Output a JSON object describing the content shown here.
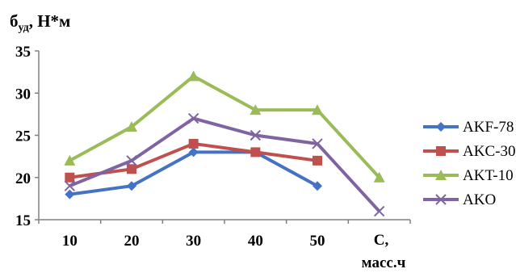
{
  "chart_data": {
    "type": "line",
    "ylabel": {
      "main": "б",
      "sub": "уд",
      "rest": ", Н*м"
    },
    "xlabel": {
      "line1": "С,",
      "line2": "масс.ч"
    },
    "categories": [
      "10",
      "20",
      "30",
      "40",
      "50",
      ""
    ],
    "y_ticks": [
      "15",
      "20",
      "25",
      "30",
      "35"
    ],
    "ylim": [
      15,
      35
    ],
    "grid": false,
    "legend_position": "right",
    "series": [
      {
        "name": "AKF-78",
        "color": "#4472C4",
        "marker": "diamond",
        "values": [
          18,
          19,
          23,
          23,
          19,
          null
        ]
      },
      {
        "name": "AKC-30",
        "color": "#C0504D",
        "marker": "square",
        "values": [
          20,
          21,
          24,
          23,
          22,
          null
        ]
      },
      {
        "name": "AKT-10",
        "color": "#9BBB59",
        "marker": "triangle",
        "values": [
          22,
          26,
          32,
          28,
          28,
          20
        ]
      },
      {
        "name": "AKO",
        "color": "#8064A2",
        "marker": "x",
        "values": [
          19,
          22,
          27,
          25,
          24,
          16
        ]
      }
    ]
  }
}
